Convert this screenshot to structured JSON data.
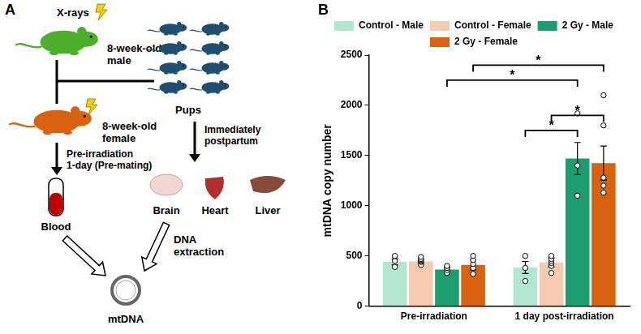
{
  "diagram": {
    "panel_label": "A",
    "x_ray_label": "X-rays",
    "male": "8-week-old male",
    "female": "8-week-old female",
    "offspring": "Pups",
    "blood_timing": "Pre-irradiation 1-day (Pre-mating)",
    "tissue_timing": "Immediately postpartum",
    "sample": "Blood",
    "tissues": [
      "Brain",
      "Heart",
      "Liver"
    ],
    "process": "DNA extraction",
    "product": "mtDNA"
  },
  "chart_data": {
    "panel_label": "B",
    "type": "bar",
    "y_label": "mtDNA copy number",
    "categories": [
      "Pre-irradiation",
      "1 day post-irradiation"
    ],
    "series": [
      {
        "name": "Control - Male",
        "color": "#b3e6d1",
        "values": [
          440,
          385
        ],
        "errors": [
          30,
          60
        ],
        "points": [
          [
            390,
            450,
            500
          ],
          [
            250,
            380,
            500
          ]
        ]
      },
      {
        "name": "Control - Female",
        "color": "#f6cbb0",
        "values": [
          445,
          435
        ],
        "errors": [
          20,
          45
        ],
        "points": [
          [
            410,
            440,
            450,
            460,
            470,
            490
          ],
          [
            330,
            400,
            430,
            450,
            470,
            500
          ]
        ]
      },
      {
        "name": "2 Gy - Male",
        "color": "#1b9e72",
        "values": [
          365,
          1470
        ],
        "errors": [
          25,
          160
        ],
        "points": [
          [
            330,
            360,
            380,
            400
          ],
          [
            1100,
            1400,
            1920
          ]
        ]
      },
      {
        "name": "2 Gy - Female",
        "color": "#d9620f",
        "values": [
          410,
          1425
        ],
        "errors": [
          50,
          170
        ],
        "points": [
          [
            320,
            380,
            420,
            460,
            500
          ],
          [
            1130,
            1200,
            1280,
            1800,
            2100
          ]
        ]
      }
    ],
    "significance": [
      {
        "from": [
          "1 day post-irradiation",
          "Control - Male"
        ],
        "to": [
          "1 day post-irradiation",
          "2 Gy - Male"
        ],
        "y": 1750,
        "text": "*"
      },
      {
        "from": [
          "1 day post-irradiation",
          "Control - Female"
        ],
        "to": [
          "1 day post-irradiation",
          "2 Gy - Female"
        ],
        "y": 1900,
        "text": "*"
      },
      {
        "from": [
          "Pre-irradiation",
          "2 Gy - Male"
        ],
        "to": [
          "1 day post-irradiation",
          "2 Gy - Male"
        ],
        "y": 2250,
        "text": "*"
      },
      {
        "from": [
          "Pre-irradiation",
          "2 Gy - Female"
        ],
        "to": [
          "1 day post-irradiation",
          "2 Gy - Female"
        ],
        "y": 2400,
        "text": "*"
      }
    ],
    "ylim": [
      0,
      2500
    ],
    "yticks": [
      0,
      500,
      1000,
      1500,
      2000,
      2500
    ],
    "grid": false,
    "legend": "top"
  }
}
